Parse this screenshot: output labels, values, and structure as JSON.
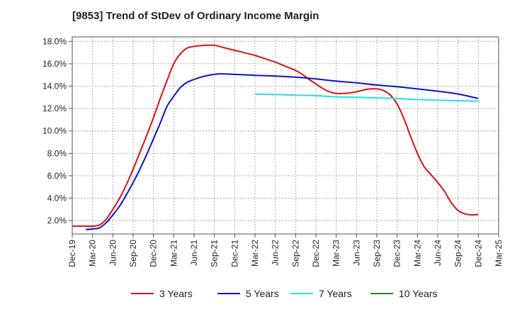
{
  "chart_data": {
    "type": "line",
    "title": "[9853]  Trend of StDev of Ordinary Income Margin",
    "xlabel": "",
    "ylabel": "",
    "x_ticks": [
      "Dec-19",
      "Mar-20",
      "Jun-20",
      "Sep-20",
      "Dec-20",
      "Mar-21",
      "Jun-21",
      "Sep-21",
      "Dec-21",
      "Mar-22",
      "Jun-22",
      "Sep-22",
      "Dec-22",
      "Mar-23",
      "Jun-23",
      "Sep-23",
      "Dec-23",
      "Mar-24",
      "Jun-24",
      "Sep-24",
      "Dec-24",
      "Mar-25"
    ],
    "y_ticks": [
      "2.0%",
      "4.0%",
      "6.0%",
      "8.0%",
      "10.0%",
      "12.0%",
      "14.0%",
      "16.0%",
      "18.0%"
    ],
    "ylim": [
      0.8,
      18.4
    ],
    "grid": true,
    "legend_position": "bottom",
    "series": [
      {
        "name": "3 Years",
        "color": "#dd1111",
        "points": [
          [
            "Dec-19",
            1.5
          ],
          [
            "Jan-20",
            1.5
          ],
          [
            "Feb-20",
            1.5
          ],
          [
            "Mar-20",
            1.5
          ],
          [
            "Apr-20",
            1.6
          ],
          [
            "May-20",
            2.1
          ],
          [
            "Jun-20",
            3.0
          ],
          [
            "Jul-20",
            4.0
          ],
          [
            "Aug-20",
            5.2
          ],
          [
            "Sep-20",
            6.6
          ],
          [
            "Oct-20",
            8.1
          ],
          [
            "Nov-20",
            9.6
          ],
          [
            "Dec-20",
            11.2
          ],
          [
            "Jan-21",
            12.9
          ],
          [
            "Feb-21",
            14.5
          ],
          [
            "Mar-21",
            16.0
          ],
          [
            "Apr-21",
            16.9
          ],
          [
            "May-21",
            17.4
          ],
          [
            "Jun-21",
            17.55
          ],
          [
            "Jul-21",
            17.62
          ],
          [
            "Aug-21",
            17.65
          ],
          [
            "Sep-21",
            17.65
          ],
          [
            "Oct-21",
            17.5
          ],
          [
            "Nov-21",
            17.35
          ],
          [
            "Dec-21",
            17.2
          ],
          [
            "Jan-22",
            17.05
          ],
          [
            "Feb-22",
            16.9
          ],
          [
            "Mar-22",
            16.75
          ],
          [
            "Apr-22",
            16.55
          ],
          [
            "May-22",
            16.35
          ],
          [
            "Jun-22",
            16.15
          ],
          [
            "Jul-22",
            15.9
          ],
          [
            "Aug-22",
            15.65
          ],
          [
            "Sep-22",
            15.4
          ],
          [
            "Oct-22",
            15.05
          ],
          [
            "Nov-22",
            14.6
          ],
          [
            "Dec-22",
            14.2
          ],
          [
            "Jan-23",
            13.8
          ],
          [
            "Feb-23",
            13.5
          ],
          [
            "Mar-23",
            13.35
          ],
          [
            "Apr-23",
            13.35
          ],
          [
            "May-23",
            13.4
          ],
          [
            "Jun-23",
            13.5
          ],
          [
            "Jul-23",
            13.65
          ],
          [
            "Aug-23",
            13.75
          ],
          [
            "Sep-23",
            13.75
          ],
          [
            "Oct-23",
            13.6
          ],
          [
            "Nov-23",
            13.2
          ],
          [
            "Dec-23",
            12.4
          ],
          [
            "Jan-24",
            11.1
          ],
          [
            "Feb-24",
            9.5
          ],
          [
            "Mar-24",
            8.0
          ],
          [
            "Apr-24",
            6.8
          ],
          [
            "May-24",
            6.1
          ],
          [
            "Jun-24",
            5.4
          ],
          [
            "Jul-24",
            4.6
          ],
          [
            "Aug-24",
            3.6
          ],
          [
            "Sep-24",
            2.9
          ],
          [
            "Oct-24",
            2.6
          ],
          [
            "Nov-24",
            2.5
          ],
          [
            "Dec-24",
            2.55
          ]
        ]
      },
      {
        "name": "5 Years",
        "color": "#0a14c8",
        "points": [
          [
            "Feb-20",
            1.2
          ],
          [
            "Mar-20",
            1.25
          ],
          [
            "Apr-20",
            1.35
          ],
          [
            "May-20",
            1.8
          ],
          [
            "Jun-20",
            2.5
          ],
          [
            "Jul-20",
            3.3
          ],
          [
            "Aug-20",
            4.3
          ],
          [
            "Sep-20",
            5.4
          ],
          [
            "Oct-20",
            6.6
          ],
          [
            "Nov-20",
            7.9
          ],
          [
            "Dec-20",
            9.3
          ],
          [
            "Jan-21",
            10.7
          ],
          [
            "Feb-21",
            12.2
          ],
          [
            "Mar-21",
            13.1
          ],
          [
            "Apr-21",
            13.9
          ],
          [
            "May-21",
            14.35
          ],
          [
            "Jun-21",
            14.6
          ],
          [
            "Jul-21",
            14.8
          ],
          [
            "Aug-21",
            14.95
          ],
          [
            "Sep-21",
            15.05
          ],
          [
            "Oct-21",
            15.1
          ],
          [
            "Dec-21",
            15.05
          ],
          [
            "Mar-22",
            14.97
          ],
          [
            "Jun-22",
            14.9
          ],
          [
            "Sep-22",
            14.8
          ],
          [
            "Dec-22",
            14.65
          ],
          [
            "Mar-23",
            14.45
          ],
          [
            "Jun-23",
            14.3
          ],
          [
            "Sep-23",
            14.1
          ],
          [
            "Dec-23",
            13.95
          ],
          [
            "Mar-24",
            13.75
          ],
          [
            "Jun-24",
            13.55
          ],
          [
            "Sep-24",
            13.3
          ],
          [
            "Dec-24",
            12.9
          ]
        ]
      },
      {
        "name": "7 Years",
        "color": "#22e0e8",
        "points": [
          [
            "Mar-22",
            13.3
          ],
          [
            "Jun-22",
            13.25
          ],
          [
            "Sep-22",
            13.2
          ],
          [
            "Dec-22",
            13.15
          ],
          [
            "Mar-23",
            13.05
          ],
          [
            "Jun-23",
            13.0
          ],
          [
            "Sep-23",
            12.95
          ],
          [
            "Dec-23",
            12.9
          ],
          [
            "Mar-24",
            12.8
          ],
          [
            "Jun-24",
            12.75
          ],
          [
            "Sep-24",
            12.7
          ],
          [
            "Dec-24",
            12.65
          ]
        ]
      },
      {
        "name": "10 Years",
        "color": "#1a8a1a",
        "points": []
      }
    ]
  }
}
